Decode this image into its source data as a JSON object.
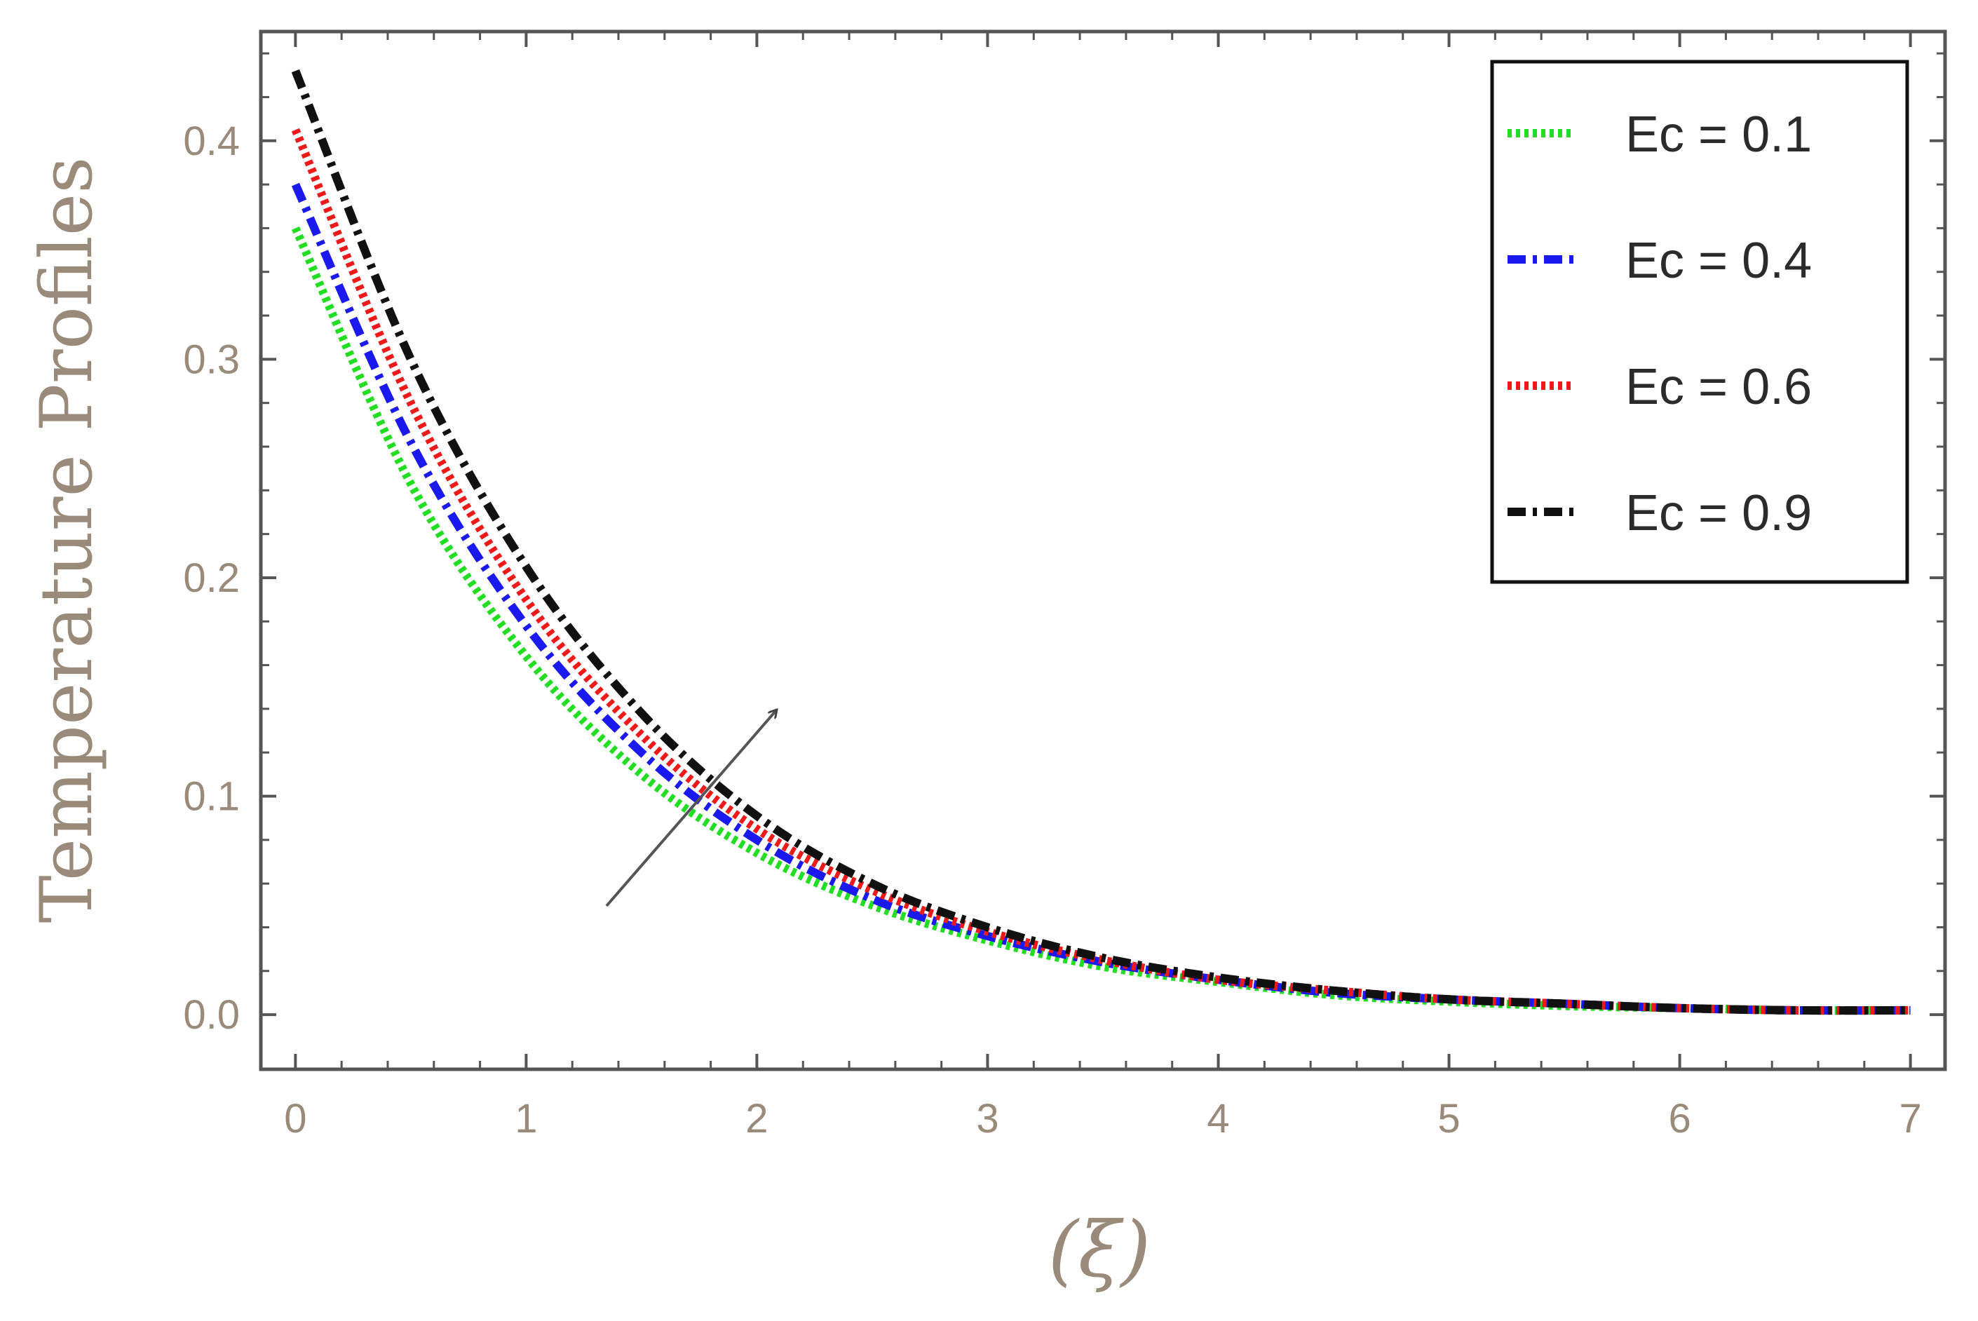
{
  "chart_data": {
    "type": "line",
    "title": "",
    "xlabel": "(ξ)",
    "ylabel": "Temperature Profiles",
    "xlim": [
      -0.15,
      7.15
    ],
    "ylim": [
      -0.025,
      0.45
    ],
    "x_ticks": [
      "0",
      "1",
      "2",
      "3",
      "4",
      "5",
      "6",
      "7"
    ],
    "y_ticks": [
      "0.0",
      "0.1",
      "0.2",
      "0.3",
      "0.4"
    ],
    "grid": false,
    "legend_position": "top-right",
    "annotation": "arrow indicating increasing Ec",
    "x": [
      0,
      0.5,
      1,
      1.5,
      2,
      2.5,
      3,
      3.5,
      4,
      4.5,
      5,
      5.5,
      6,
      6.5,
      7
    ],
    "series": [
      {
        "name": "Ec = 0.1",
        "color": "#22dd22",
        "style": "dotted",
        "values": [
          0.36,
          0.243,
          0.164,
          0.11,
          0.074,
          0.05,
          0.034,
          0.022,
          0.015,
          0.009,
          0.006,
          0.004,
          0.003,
          0.002,
          0.002
        ]
      },
      {
        "name": "Ec = 0.4",
        "color": "#1a1aee",
        "style": "dash-dot",
        "values": [
          0.38,
          0.262,
          0.178,
          0.12,
          0.08,
          0.053,
          0.036,
          0.024,
          0.016,
          0.01,
          0.007,
          0.005,
          0.003,
          0.002,
          0.002
        ]
      },
      {
        "name": "Ec = 0.6",
        "color": "#ee1a1a",
        "style": "dotted",
        "values": [
          0.405,
          0.28,
          0.19,
          0.128,
          0.085,
          0.057,
          0.038,
          0.025,
          0.016,
          0.011,
          0.007,
          0.005,
          0.003,
          0.002,
          0.002
        ]
      },
      {
        "name": "Ec = 0.9",
        "color": "#111111",
        "style": "dash-dot",
        "values": [
          0.432,
          0.3,
          0.205,
          0.138,
          0.091,
          0.06,
          0.04,
          0.026,
          0.017,
          0.011,
          0.007,
          0.005,
          0.003,
          0.002,
          0.002
        ]
      }
    ]
  }
}
